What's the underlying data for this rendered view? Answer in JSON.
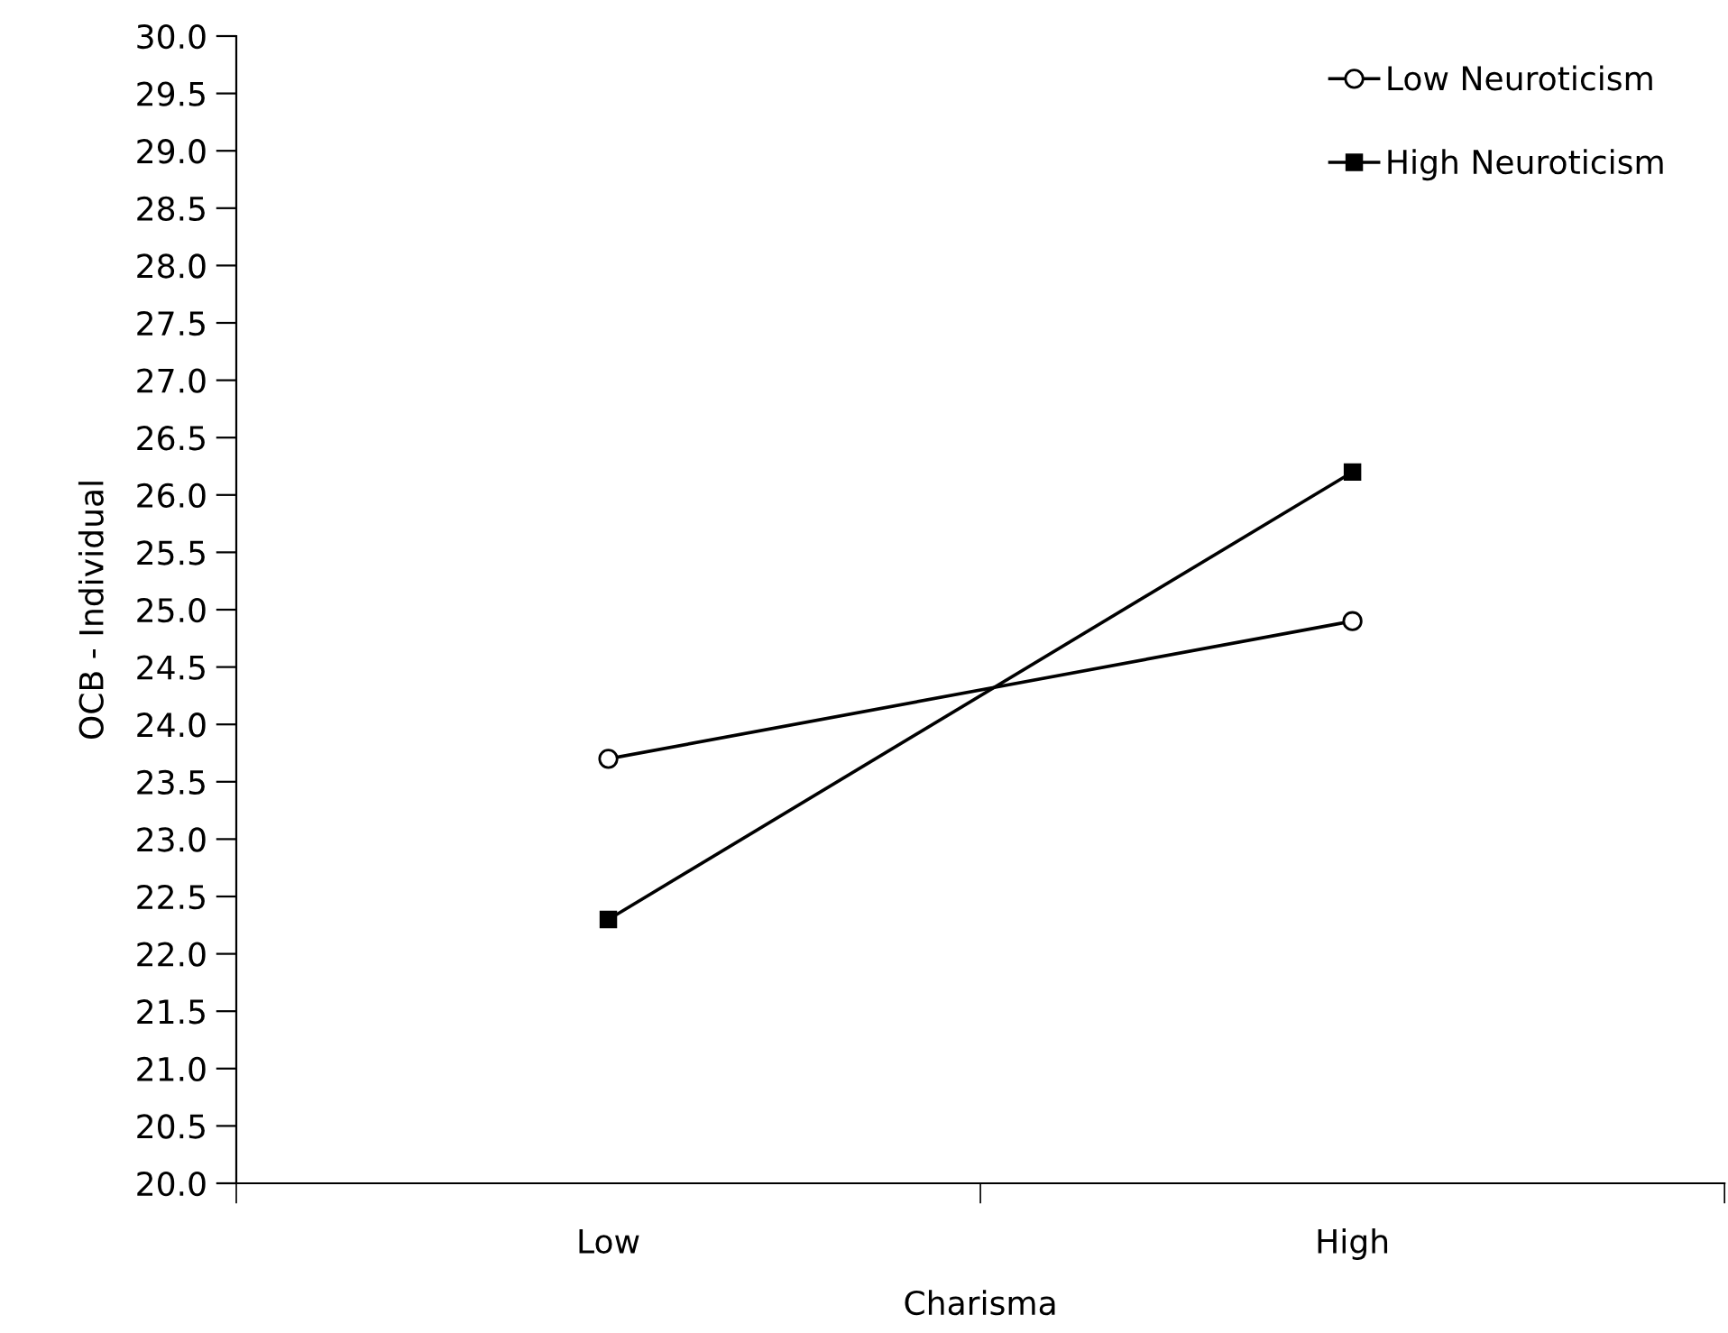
{
  "chart_data": {
    "type": "line",
    "xlabel": "Charisma",
    "ylabel": "OCB - Individual",
    "categories": [
      "Low",
      "High"
    ],
    "series": [
      {
        "name": "Low Neuroticism",
        "color": "#000000",
        "marker": "circle",
        "values": [
          23.7,
          24.9
        ]
      },
      {
        "name": "High Neuroticism",
        "color": "#000000",
        "marker": "square",
        "values": [
          22.3,
          26.2
        ]
      }
    ],
    "ylim": [
      20,
      30
    ],
    "yticks": [
      {
        "value": 20,
        "label": "20.0"
      },
      20.5,
      {
        "value": 21,
        "label": "21.0"
      },
      21.5,
      {
        "value": 22,
        "label": "22.0"
      },
      22.5,
      {
        "value": 23,
        "label": "23.0"
      },
      23.5,
      {
        "value": 24,
        "label": "24.0"
      },
      24.5,
      {
        "value": 25,
        "label": "25.0"
      },
      25.5,
      {
        "value": 26,
        "label": "26.0"
      },
      26.5,
      {
        "value": 27,
        "label": "27.0"
      },
      27.5,
      {
        "value": 28,
        "label": "28.0"
      },
      28.5,
      {
        "value": 29,
        "label": "29.0"
      },
      29.5,
      {
        "value": 30,
        "label": "30.0"
      }
    ],
    "grid": false,
    "legend": "top right",
    "line_style": "solid"
  }
}
